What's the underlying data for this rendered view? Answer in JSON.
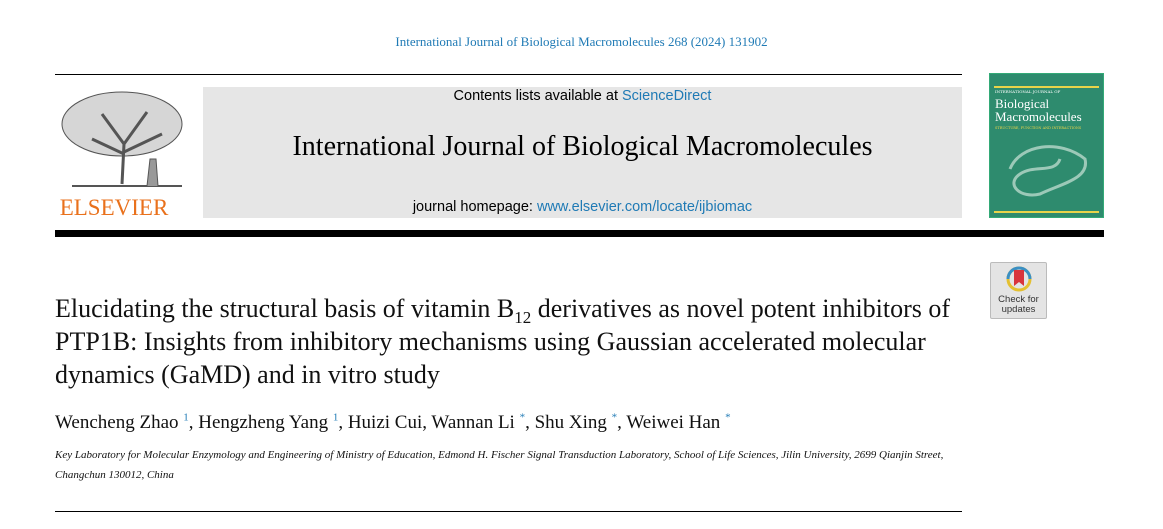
{
  "citation": "International Journal of Biological Macromolecules 268 (2024) 131902",
  "publisher": {
    "name": "ELSEVIER",
    "logo": "elsevier-tree-logo"
  },
  "banner": {
    "contents_prefix": "Contents lists available at ",
    "contents_link": "ScienceDirect",
    "journal_title": "International Journal of Biological Macromolecules",
    "homepage_prefix": "journal homepage: ",
    "homepage_link": "www.elsevier.com/locate/ijbiomac"
  },
  "cover": {
    "overline": "INTERNATIONAL JOURNAL OF",
    "title_line1": "Biological",
    "title_line2": "Macromolecules",
    "subtitle": "STRUCTURE, FUNCTION AND INTERACTIONS",
    "color": "#2e8b6e"
  },
  "check_updates": {
    "line1": "Check for",
    "line2": "updates"
  },
  "article": {
    "title_part1": "Elucidating the structural basis of vitamin B",
    "title_sub": "12",
    "title_part2": " derivatives as novel potent inhibitors of PTP1B: Insights from inhibitory mechanisms using Gaussian accelerated molecular dynamics (GaMD) and in vitro study",
    "authors": [
      {
        "name": "Wencheng Zhao",
        "mark": "1"
      },
      {
        "name": "Hengzheng Yang",
        "mark": "1"
      },
      {
        "name": "Huizi Cui",
        "mark": ""
      },
      {
        "name": "Wannan Li",
        "mark": "*"
      },
      {
        "name": "Shu Xing",
        "mark": "*"
      },
      {
        "name": "Weiwei Han",
        "mark": "*"
      }
    ],
    "affiliation": "Key Laboratory for Molecular Enzymology and Engineering of Ministry of Education, Edmond H. Fischer Signal Transduction Laboratory, School of Life Sciences, Jilin University, 2699 Qianjin Street, Changchun 130012, China"
  },
  "link_color": "#1f7ab5"
}
